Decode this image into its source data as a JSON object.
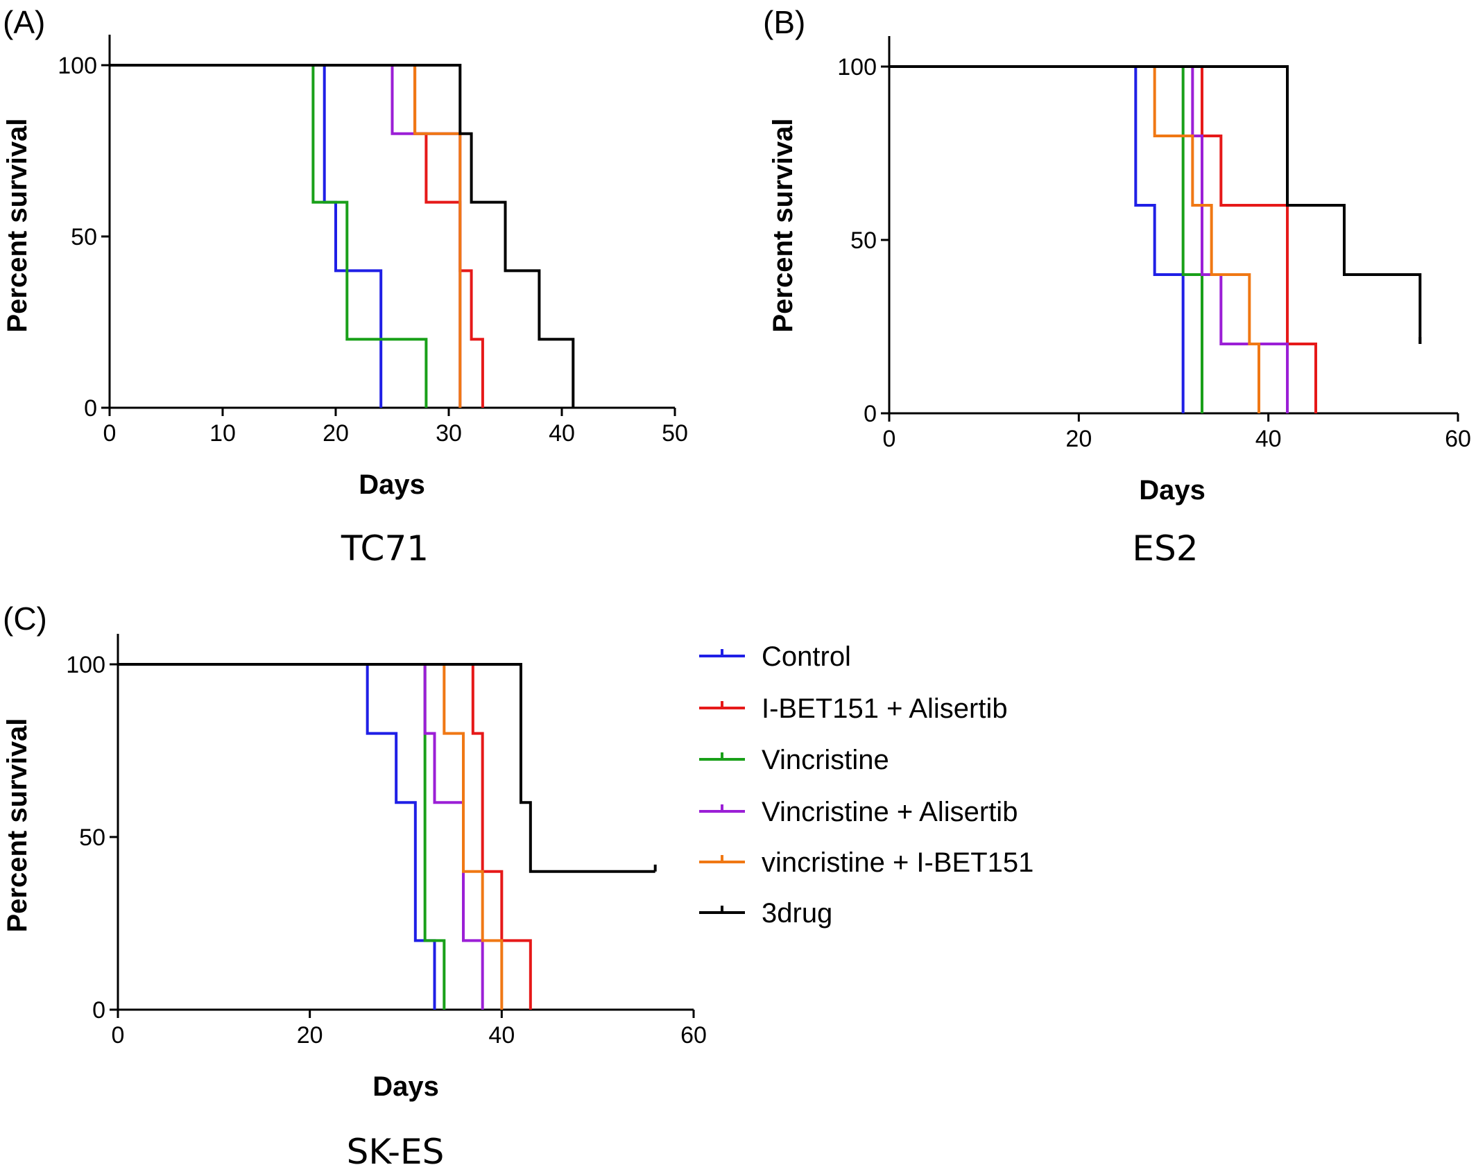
{
  "legend": [
    {
      "name": "Control",
      "color": "#1f1fe6"
    },
    {
      "name": "I-BET151 + Alisertib",
      "color": "#e61919"
    },
    {
      "name": "Vincristine",
      "color": "#19a019"
    },
    {
      "name": "Vincristine + Alisertib",
      "color": "#9b1fd6"
    },
    {
      "name": "vincristine + I-BET151",
      "color": "#f07814"
    },
    {
      "name": "3drug",
      "color": "#000000"
    }
  ],
  "chart_data": [
    {
      "type": "line",
      "panel": "(A)",
      "title": "TC71",
      "xlabel": "Days",
      "ylabel": "Percent survival",
      "xlim": [
        0,
        50
      ],
      "ylim": [
        0,
        100
      ],
      "xticks": [
        0,
        10,
        20,
        30,
        40,
        50
      ],
      "yticks": [
        0,
        50,
        100
      ],
      "step": true,
      "series": [
        {
          "name": "Control",
          "color": "#1f1fe6",
          "x": [
            0,
            19,
            20,
            24
          ],
          "y": [
            100,
            60,
            40,
            0
          ]
        },
        {
          "name": "I-BET151 + Alisertib",
          "color": "#e61919",
          "x": [
            0,
            27,
            28,
            31,
            32,
            33
          ],
          "y": [
            100,
            80,
            60,
            40,
            20,
            0
          ]
        },
        {
          "name": "Vincristine",
          "color": "#19a019",
          "x": [
            0,
            18,
            19,
            21,
            28
          ],
          "y": [
            100,
            60,
            60,
            20,
            0
          ]
        },
        {
          "name": "Vincristine + Alisertib",
          "color": "#9b1fd6",
          "x": [
            0,
            25,
            27,
            31
          ],
          "y": [
            100,
            80,
            80,
            0
          ]
        },
        {
          "name": "vincristine + I-BET151",
          "color": "#f07814",
          "x": [
            0,
            27,
            31
          ],
          "y": [
            100,
            80,
            0
          ]
        },
        {
          "name": "3drug",
          "color": "#000000",
          "x": [
            0,
            31,
            32,
            35,
            38,
            41
          ],
          "y": [
            100,
            80,
            60,
            40,
            20,
            0
          ]
        }
      ]
    },
    {
      "type": "line",
      "panel": "(B)",
      "title": "ES2",
      "xlabel": "Days",
      "ylabel": "Percent survival",
      "xlim": [
        0,
        60
      ],
      "ylim": [
        0,
        100
      ],
      "xticks": [
        0,
        20,
        40,
        60
      ],
      "yticks": [
        0,
        50,
        100
      ],
      "step": true,
      "series": [
        {
          "name": "Control",
          "color": "#1f1fe6",
          "x": [
            0,
            26,
            28,
            31
          ],
          "y": [
            100,
            60,
            40,
            0
          ]
        },
        {
          "name": "I-BET151 + Alisertib",
          "color": "#e61919",
          "x": [
            0,
            33,
            35,
            42,
            45
          ],
          "y": [
            100,
            80,
            60,
            20,
            0
          ]
        },
        {
          "name": "Vincristine",
          "color": "#19a019",
          "x": [
            0,
            31,
            33
          ],
          "y": [
            100,
            40,
            0
          ]
        },
        {
          "name": "Vincristine + Alisertib",
          "color": "#9b1fd6",
          "x": [
            0,
            32,
            33,
            35,
            42
          ],
          "y": [
            100,
            80,
            40,
            20,
            0
          ]
        },
        {
          "name": "vincristine + I-BET151",
          "color": "#f07814",
          "x": [
            0,
            28,
            32,
            34,
            38,
            39
          ],
          "y": [
            100,
            80,
            60,
            40,
            20,
            0
          ]
        },
        {
          "name": "3drug",
          "color": "#000000",
          "x": [
            0,
            42,
            48
          ],
          "y": [
            100,
            60,
            40
          ],
          "end_x": 56,
          "end_y": 20
        }
      ]
    },
    {
      "type": "line",
      "panel": "(C)",
      "title": "SK-ES",
      "xlabel": "Days",
      "ylabel": "Percent survival",
      "xlim": [
        0,
        60
      ],
      "ylim": [
        0,
        100
      ],
      "xticks": [
        0,
        20,
        40,
        60
      ],
      "yticks": [
        0,
        50,
        100
      ],
      "step": true,
      "series": [
        {
          "name": "Control",
          "color": "#1f1fe6",
          "x": [
            0,
            26,
            29,
            31,
            33
          ],
          "y": [
            100,
            80,
            60,
            20,
            0
          ]
        },
        {
          "name": "I-BET151 + Alisertib",
          "color": "#e61919",
          "x": [
            0,
            37,
            38,
            40,
            43
          ],
          "y": [
            100,
            80,
            40,
            20,
            0
          ]
        },
        {
          "name": "Vincristine",
          "color": "#19a019",
          "x": [
            0,
            32,
            34
          ],
          "y": [
            100,
            20,
            0
          ]
        },
        {
          "name": "Vincristine + Alisertib",
          "color": "#9b1fd6",
          "x": [
            0,
            32,
            33,
            36,
            38
          ],
          "y": [
            100,
            80,
            60,
            20,
            0
          ]
        },
        {
          "name": "vincristine + I-BET151",
          "color": "#f07814",
          "x": [
            0,
            34,
            36,
            38,
            40
          ],
          "y": [
            100,
            80,
            40,
            20,
            0
          ]
        },
        {
          "name": "3drug",
          "color": "#000000",
          "x": [
            0,
            42,
            43
          ],
          "y": [
            100,
            60,
            40
          ],
          "end_x": 56,
          "end_y": 40
        }
      ]
    }
  ]
}
